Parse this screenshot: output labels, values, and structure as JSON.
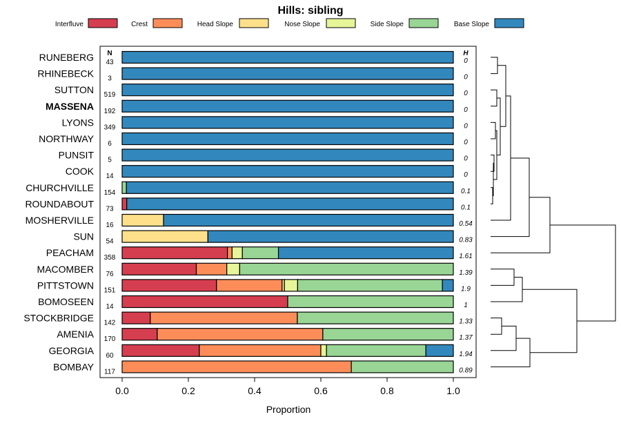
{
  "chart_data": {
    "type": "bar",
    "orientation": "horizontal",
    "stacked": true,
    "title": "Hills: sibling",
    "xlabel": "Proportion",
    "ylabel": "",
    "xlim": [
      0,
      1
    ],
    "xticks": [
      "0.0",
      "0.2",
      "0.4",
      "0.6",
      "0.8",
      "1.0"
    ],
    "n_header": "N",
    "h_header": "H",
    "legend_position": "top",
    "legend": [
      {
        "name": "Interfluve",
        "color": "#d53e4f"
      },
      {
        "name": "Crest",
        "color": "#fc8d59"
      },
      {
        "name": "Head Slope",
        "color": "#fee08b"
      },
      {
        "name": "Nose Slope",
        "color": "#e6f598"
      },
      {
        "name": "Side Slope",
        "color": "#99d594"
      },
      {
        "name": "Base Slope",
        "color": "#3288bd"
      }
    ],
    "rows": [
      {
        "label": "RUNEBERG",
        "n": "43",
        "h": "0",
        "bold": false,
        "values": [
          0,
          0,
          0,
          0,
          0,
          1
        ]
      },
      {
        "label": "RHINEBECK",
        "n": "3",
        "h": "0",
        "bold": false,
        "values": [
          0,
          0,
          0,
          0,
          0,
          1
        ]
      },
      {
        "label": "SUTTON",
        "n": "519",
        "h": "0",
        "bold": false,
        "values": [
          0,
          0,
          0,
          0,
          0,
          1
        ]
      },
      {
        "label": "MASSENA",
        "n": "192",
        "h": "0",
        "bold": true,
        "values": [
          0,
          0,
          0,
          0,
          0,
          1
        ]
      },
      {
        "label": "LYONS",
        "n": "349",
        "h": "0",
        "bold": false,
        "values": [
          0,
          0,
          0,
          0,
          0,
          1
        ]
      },
      {
        "label": "NORTHWAY",
        "n": "6",
        "h": "0",
        "bold": false,
        "values": [
          0,
          0,
          0,
          0,
          0,
          1
        ]
      },
      {
        "label": "PUNSIT",
        "n": "5",
        "h": "0",
        "bold": false,
        "values": [
          0,
          0,
          0,
          0,
          0,
          1
        ]
      },
      {
        "label": "COOK",
        "n": "14",
        "h": "0",
        "bold": false,
        "values": [
          0,
          0,
          0,
          0,
          0,
          1
        ]
      },
      {
        "label": "CHURCHVILLE",
        "n": "154",
        "h": "0.1",
        "bold": false,
        "values": [
          0,
          0,
          0,
          0,
          0.013,
          0.987
        ]
      },
      {
        "label": "ROUNDABOUT",
        "n": "73",
        "h": "0.1",
        "bold": false,
        "values": [
          0.014,
          0,
          0,
          0,
          0,
          0.986
        ]
      },
      {
        "label": "MOSHERVILLE",
        "n": "16",
        "h": "0.54",
        "bold": false,
        "values": [
          0,
          0,
          0.125,
          0,
          0,
          0.875
        ]
      },
      {
        "label": "SUN",
        "n": "54",
        "h": "0.83",
        "bold": false,
        "values": [
          0,
          0,
          0.259,
          0,
          0,
          0.741
        ]
      },
      {
        "label": "PEACHAM",
        "n": "358",
        "h": "1.61",
        "bold": false,
        "values": [
          0.318,
          0.014,
          0,
          0.031,
          0.109,
          0.528
        ]
      },
      {
        "label": "MACOMBER",
        "n": "76",
        "h": "1.39",
        "bold": false,
        "values": [
          0.224,
          0.092,
          0,
          0.039,
          0.645,
          0
        ]
      },
      {
        "label": "PITTSTOWN",
        "n": "151",
        "h": "1.9",
        "bold": false,
        "values": [
          0.285,
          0.198,
          0.007,
          0.04,
          0.437,
          0.033
        ]
      },
      {
        "label": "BOMOSEEN",
        "n": "14",
        "h": "1",
        "bold": false,
        "values": [
          0.5,
          0,
          0,
          0,
          0.5,
          0
        ]
      },
      {
        "label": "STOCKBRIDGE",
        "n": "142",
        "h": "1.33",
        "bold": false,
        "values": [
          0.085,
          0.444,
          0,
          0,
          0.471,
          0
        ]
      },
      {
        "label": "AMENIA",
        "n": "170",
        "h": "1.37",
        "bold": false,
        "values": [
          0.106,
          0.5,
          0,
          0,
          0.394,
          0
        ]
      },
      {
        "label": "GEORGIA",
        "n": "60",
        "h": "1.94",
        "bold": false,
        "values": [
          0.233,
          0.367,
          0,
          0.017,
          0.3,
          0.083
        ]
      },
      {
        "label": "BOMBAY",
        "n": "117",
        "h": "0.89",
        "bold": false,
        "values": [
          0,
          0.692,
          0,
          0,
          0.308,
          0
        ]
      }
    ]
  }
}
